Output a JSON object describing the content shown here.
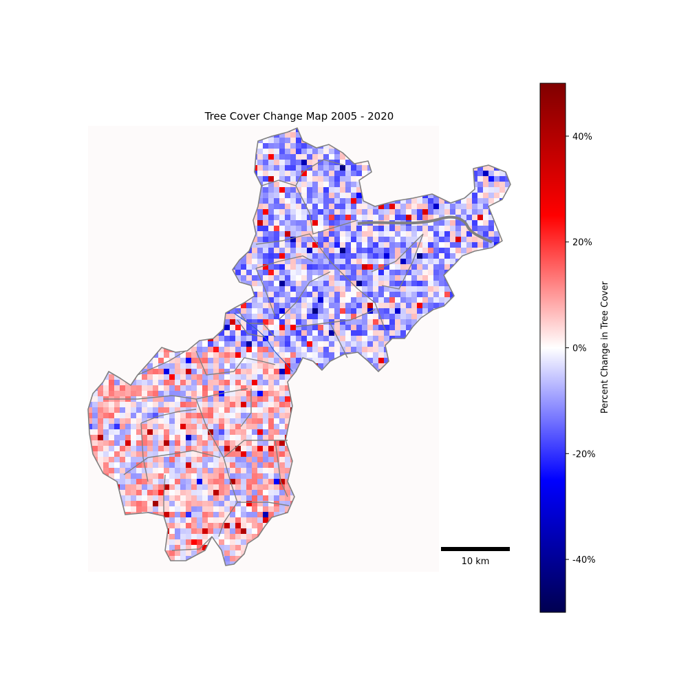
{
  "map": {
    "title": "Tree Cover Change Map 2005 - 2020",
    "colormap": "seismic",
    "colors": {
      "high": "#800000",
      "positive": "#ff0000",
      "neutral": "#ffffff",
      "negative": "#0000ff",
      "low": "#000050",
      "boundary": "#808080"
    }
  },
  "colorbar": {
    "label": "Percent Change in Tree Cover",
    "range": [
      -50,
      50
    ],
    "ticks": [
      {
        "value": 40,
        "label": "40%"
      },
      {
        "value": 20,
        "label": "20%"
      },
      {
        "value": 0,
        "label": "0%"
      },
      {
        "value": -20,
        "label": "-20%"
      },
      {
        "value": -40,
        "label": "-40%"
      }
    ]
  },
  "scale_bar": {
    "label": "10 km"
  }
}
